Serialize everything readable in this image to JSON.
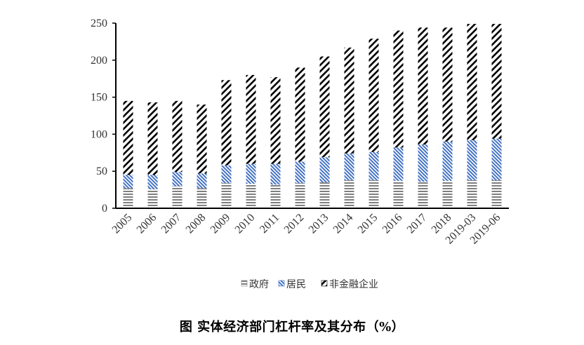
{
  "chart_data": {
    "type": "bar",
    "stacked": true,
    "categories": [
      "2005",
      "2006",
      "2007",
      "2008",
      "2009",
      "2010",
      "2011",
      "2012",
      "2013",
      "2014",
      "2015",
      "2016",
      "2017",
      "2018",
      "2019-03",
      "2019-06"
    ],
    "series": [
      {
        "name": "政府",
        "color": "#7f7f7f",
        "pattern": "horizontal-lines",
        "values": [
          27,
          26,
          30,
          27,
          34,
          33,
          32,
          34,
          35,
          38,
          38,
          37,
          36,
          37,
          38,
          38
        ]
      },
      {
        "name": "居民",
        "color": "#4472c4",
        "pattern": "diagonal-down-lines",
        "values": [
          18,
          19,
          19,
          20,
          24,
          27,
          28,
          29,
          34,
          36,
          38,
          45,
          50,
          53,
          54,
          56
        ]
      },
      {
        "name": "非金融企业",
        "color": "#000000",
        "pattern": "wide-diagonal-up-lines",
        "values": [
          100,
          98,
          96,
          93,
          115,
          120,
          117,
          127,
          136,
          143,
          153,
          158,
          158,
          154,
          157,
          155
        ]
      }
    ],
    "ylim": [
      0,
      250
    ],
    "yticks": [
      "0",
      "50",
      "100",
      "150",
      "200",
      "250"
    ],
    "grid": false,
    "legend": "bottom",
    "xlabel": "",
    "ylabel": ""
  },
  "caption": "图  实体经济部门杠杆率及其分布（%）"
}
